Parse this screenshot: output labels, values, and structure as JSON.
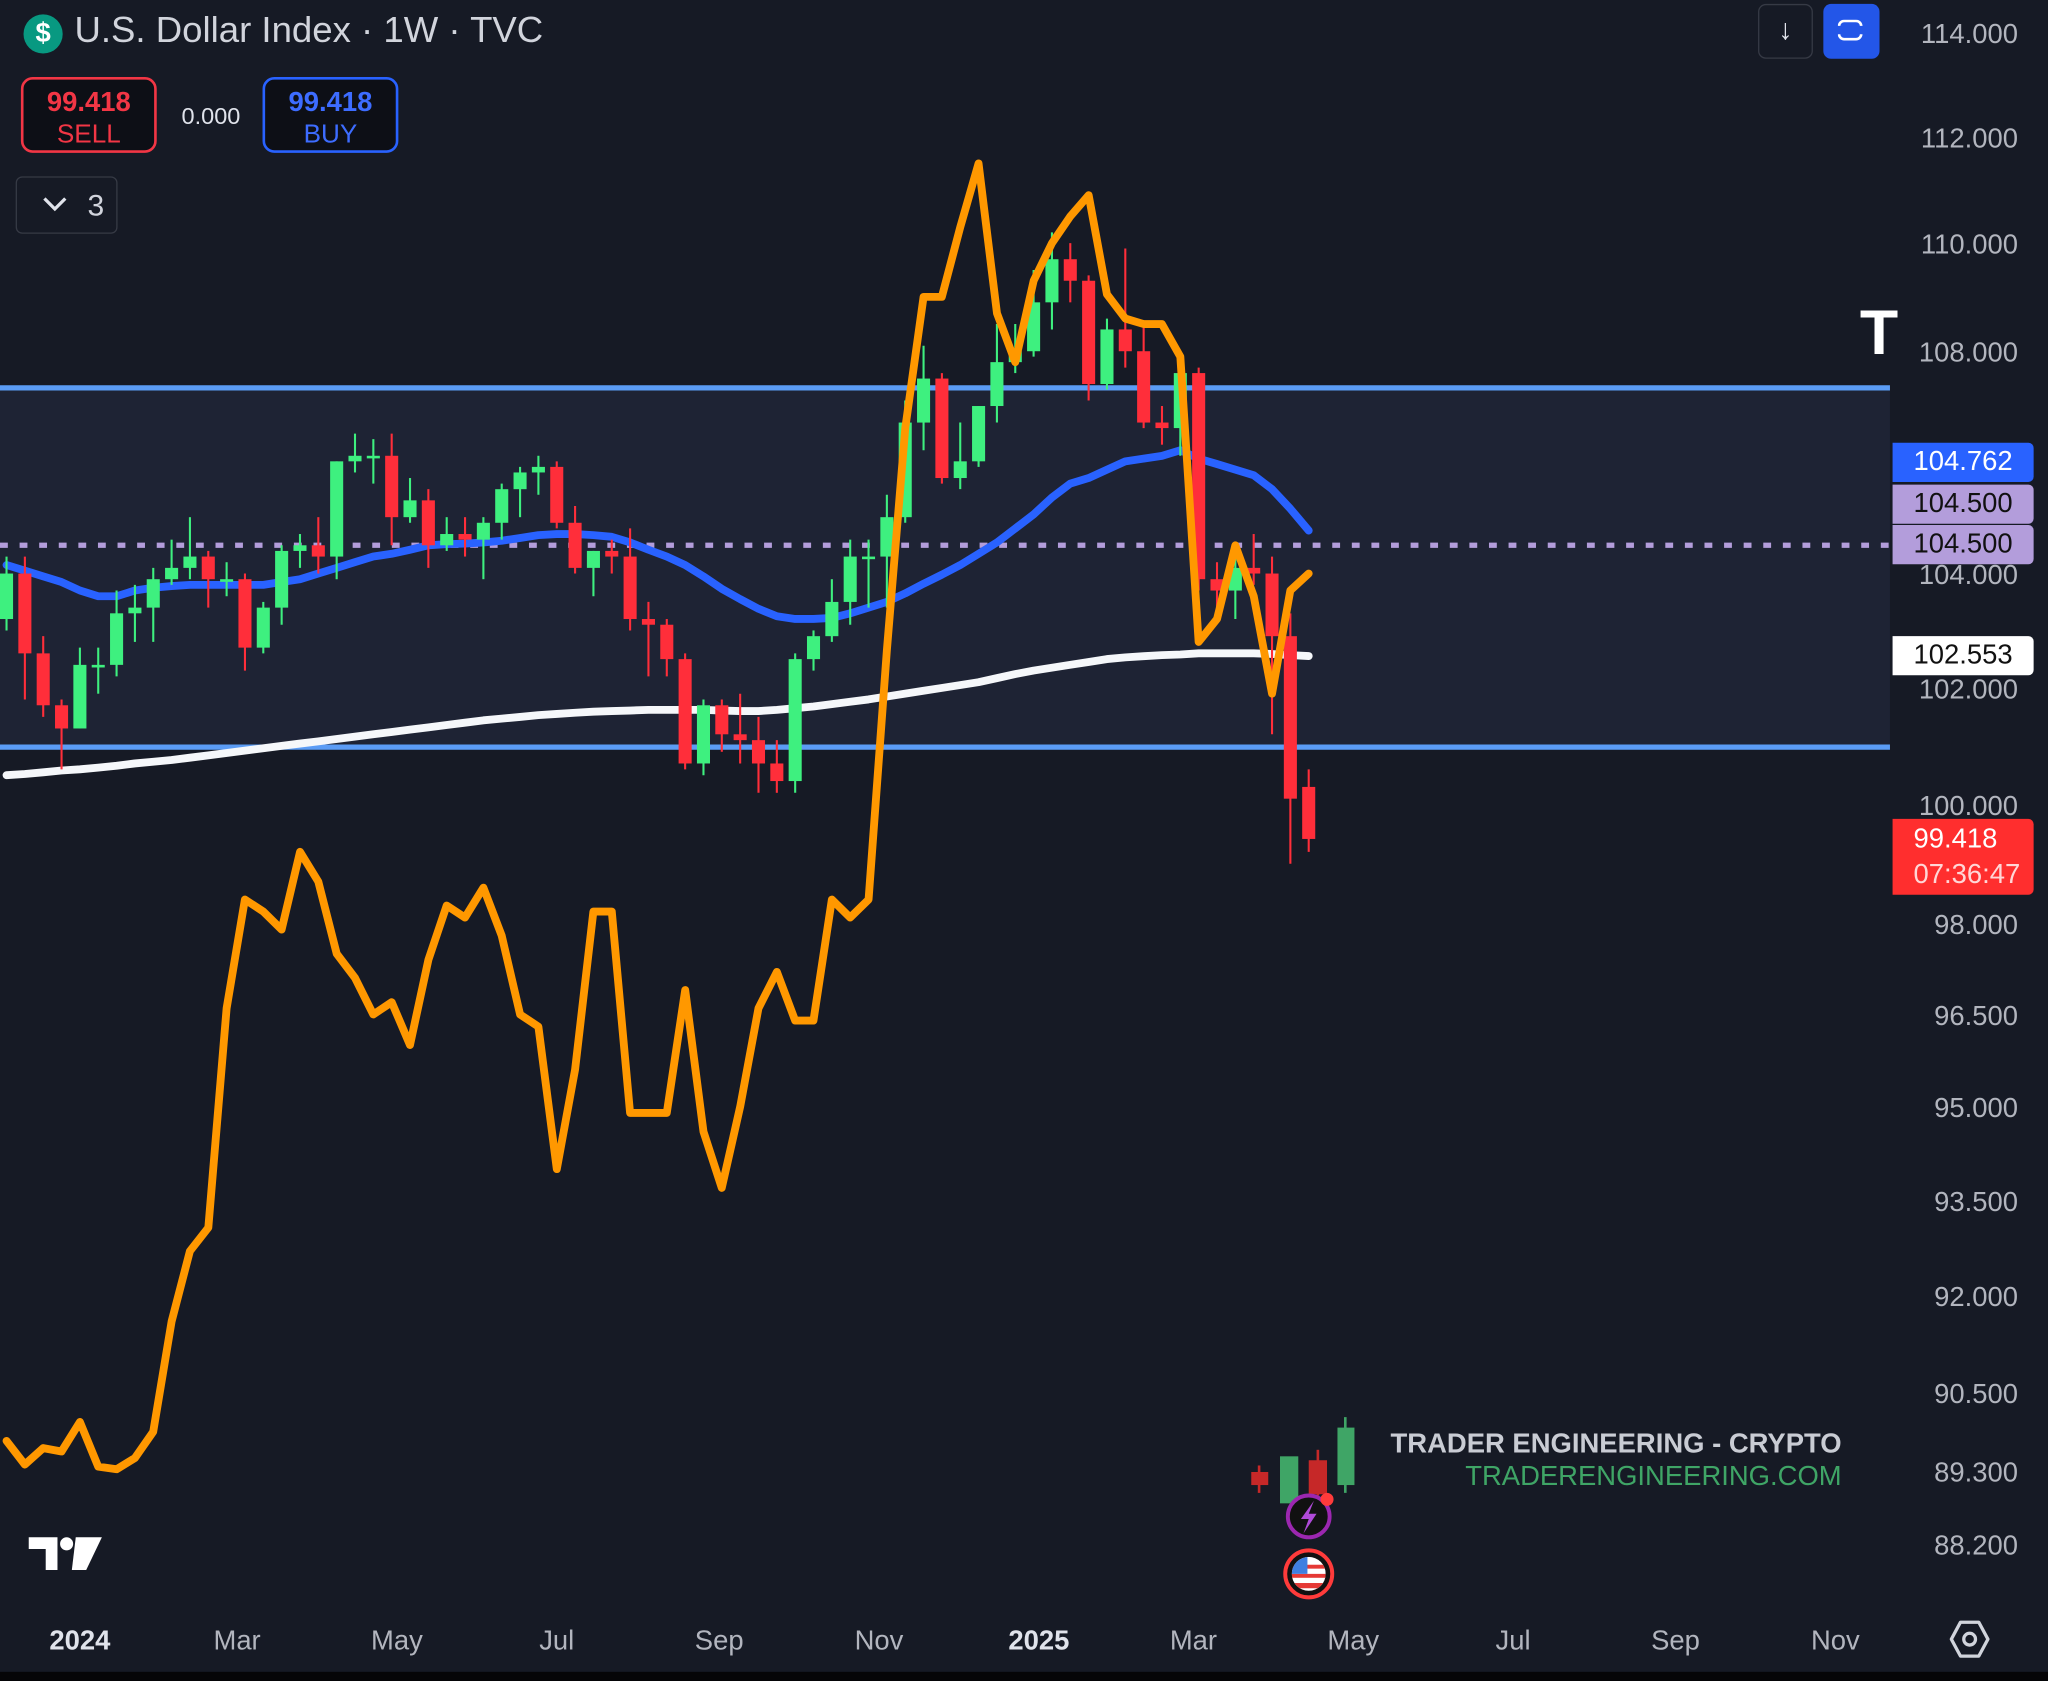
{
  "header": {
    "symbol_icon": "dollar-icon",
    "title": "U.S. Dollar Index · 1W · TVC"
  },
  "trade": {
    "sell_price": "99.418",
    "sell_label": "SELL",
    "spread": "0.000",
    "buy_price": "99.418",
    "buy_label": "BUY"
  },
  "legend_toggle": {
    "icon": "chevron-down-icon",
    "count": "3"
  },
  "toolbar": {
    "download_icon": "arrow-down-icon",
    "fullscreen_icon": "fullscreen-icon"
  },
  "clipped_label": "T",
  "price_labels": {
    "ma_blue": {
      "text": "104.762",
      "color": "#2962ff"
    },
    "line_1": {
      "text": "104.500",
      "color": "#b39ddb"
    },
    "line_2": {
      "text": "104.500",
      "color": "#b39ddb"
    },
    "ma_white": {
      "text": "102.553",
      "color": "#ffffff"
    },
    "last": {
      "text": "99.418",
      "countdown": "07:36:47",
      "color": "#ff2e2e"
    }
  },
  "watermark": {
    "line1": "TRADER ENGINEERING - CRYPTO",
    "line2": "TRADERENGINEERING.COM"
  },
  "markers": [
    "lightning-icon",
    "us-flag-icon"
  ],
  "colors": {
    "up": "#3ef07f",
    "down": "#ff2e3a",
    "ma_blue": "#2962ff",
    "ma_white": "#f5f7fa",
    "overlay": "#ff9800",
    "range": "#5b9cf5",
    "range_fill": "#1e2334",
    "level": "#b39ddb",
    "background": "#161a25"
  },
  "chart_data": {
    "type": "candlestick",
    "y_scale": "log",
    "ylim": [
      87.6,
      114.4
    ],
    "y_ticks": [
      "114.000",
      "112.000",
      "110.000",
      "108.000",
      "104.000",
      "102.000",
      "100.000",
      "98.000",
      "96.500",
      "95.000",
      "93.500",
      "92.000",
      "90.500",
      "89.300",
      "88.200"
    ],
    "x_ticks": [
      {
        "label": "2024",
        "date": "2024-01-01",
        "bold": true
      },
      {
        "label": "Mar",
        "date": "2024-03-01"
      },
      {
        "label": "May",
        "date": "2024-05-01"
      },
      {
        "label": "Jul",
        "date": "2024-07-01"
      },
      {
        "label": "Sep",
        "date": "2024-09-01"
      },
      {
        "label": "Nov",
        "date": "2024-11-01"
      },
      {
        "label": "2025",
        "date": "2025-01-01",
        "bold": true
      },
      {
        "label": "Mar",
        "date": "2025-03-01"
      },
      {
        "label": "May",
        "date": "2025-05-01"
      },
      {
        "label": "Jul",
        "date": "2025-07-01"
      },
      {
        "label": "Sep",
        "date": "2025-09-01"
      },
      {
        "label": "Nov",
        "date": "2025-11-01"
      }
    ],
    "range_box": {
      "top": 107.33,
      "bottom": 100.98
    },
    "horizontal_level": 104.5,
    "candles_ohlc": [
      [
        "2023-12-04",
        103.2,
        104.3,
        103.0,
        104.0
      ],
      [
        "2023-12-11",
        104.0,
        104.3,
        101.8,
        102.6
      ],
      [
        "2023-12-18",
        102.6,
        102.9,
        101.5,
        101.7
      ],
      [
        "2023-12-25",
        101.7,
        101.8,
        100.6,
        101.3
      ],
      [
        "2024-01-01",
        101.3,
        102.7,
        101.3,
        102.4
      ],
      [
        "2024-01-08",
        102.4,
        102.7,
        101.9,
        102.4
      ],
      [
        "2024-01-15",
        102.4,
        103.7,
        102.2,
        103.3
      ],
      [
        "2024-01-22",
        103.3,
        103.8,
        102.8,
        103.4
      ],
      [
        "2024-01-29",
        103.4,
        104.1,
        102.8,
        103.9
      ],
      [
        "2024-02-05",
        103.9,
        104.6,
        103.8,
        104.1
      ],
      [
        "2024-02-12",
        104.1,
        105.0,
        103.9,
        104.3
      ],
      [
        "2024-02-19",
        104.3,
        104.4,
        103.4,
        103.9
      ],
      [
        "2024-02-26",
        103.9,
        104.2,
        103.6,
        103.9
      ],
      [
        "2024-03-04",
        103.9,
        104.0,
        102.3,
        102.7
      ],
      [
        "2024-03-11",
        102.7,
        103.5,
        102.6,
        103.4
      ],
      [
        "2024-03-18",
        103.4,
        104.5,
        103.1,
        104.4
      ],
      [
        "2024-03-25",
        104.4,
        104.7,
        104.1,
        104.5
      ],
      [
        "2024-04-01",
        104.5,
        105.0,
        104.0,
        104.3
      ],
      [
        "2024-04-08",
        104.3,
        106.0,
        103.9,
        106.0
      ],
      [
        "2024-04-15",
        106.0,
        106.5,
        105.8,
        106.1
      ],
      [
        "2024-04-22",
        106.1,
        106.4,
        105.6,
        106.1
      ],
      [
        "2024-04-29",
        106.1,
        106.5,
        104.5,
        105.0
      ],
      [
        "2024-05-06",
        105.0,
        105.7,
        104.9,
        105.3
      ],
      [
        "2024-05-13",
        105.3,
        105.5,
        104.1,
        104.5
      ],
      [
        "2024-05-20",
        104.5,
        105.0,
        104.4,
        104.7
      ],
      [
        "2024-05-27",
        104.7,
        105.0,
        104.3,
        104.6
      ],
      [
        "2024-06-03",
        104.6,
        105.0,
        103.9,
        104.9
      ],
      [
        "2024-06-10",
        104.9,
        105.6,
        104.6,
        105.5
      ],
      [
        "2024-06-17",
        105.5,
        105.9,
        105.0,
        105.8
      ],
      [
        "2024-06-24",
        105.8,
        106.1,
        105.4,
        105.9
      ],
      [
        "2024-07-01",
        105.9,
        106.0,
        104.8,
        104.9
      ],
      [
        "2024-07-08",
        104.9,
        105.2,
        104.0,
        104.1
      ],
      [
        "2024-07-15",
        104.1,
        104.4,
        103.6,
        104.4
      ],
      [
        "2024-07-22",
        104.4,
        104.6,
        104.0,
        104.3
      ],
      [
        "2024-07-29",
        104.3,
        104.8,
        103.0,
        103.2
      ],
      [
        "2024-08-05",
        103.2,
        103.5,
        102.2,
        103.1
      ],
      [
        "2024-08-12",
        103.1,
        103.2,
        102.2,
        102.5
      ],
      [
        "2024-08-19",
        102.5,
        102.6,
        100.6,
        100.7
      ],
      [
        "2024-08-26",
        100.7,
        101.8,
        100.5,
        101.7
      ],
      [
        "2024-09-02",
        101.7,
        101.8,
        100.9,
        101.2
      ],
      [
        "2024-09-09",
        101.2,
        101.9,
        100.7,
        101.1
      ],
      [
        "2024-09-16",
        101.1,
        101.5,
        100.2,
        100.7
      ],
      [
        "2024-09-23",
        100.7,
        101.1,
        100.2,
        100.4
      ],
      [
        "2024-09-30",
        100.4,
        102.6,
        100.2,
        102.5
      ],
      [
        "2024-10-07",
        102.5,
        103.0,
        102.3,
        102.9
      ],
      [
        "2024-10-14",
        102.9,
        103.9,
        102.8,
        103.5
      ],
      [
        "2024-10-21",
        103.5,
        104.6,
        103.1,
        104.3
      ],
      [
        "2024-10-28",
        104.3,
        104.6,
        103.4,
        104.3
      ],
      [
        "2024-11-04",
        104.3,
        105.4,
        103.4,
        105.0
      ],
      [
        "2024-11-11",
        105.0,
        107.1,
        104.9,
        106.7
      ],
      [
        "2024-11-18",
        106.7,
        108.1,
        106.2,
        107.5
      ],
      [
        "2024-11-25",
        107.5,
        107.6,
        105.6,
        105.7
      ],
      [
        "2024-12-02",
        105.7,
        106.7,
        105.5,
        106.0
      ],
      [
        "2024-12-09",
        106.0,
        107.0,
        105.9,
        107.0
      ],
      [
        "2024-12-16",
        107.0,
        108.5,
        106.7,
        107.8
      ],
      [
        "2024-12-23",
        107.8,
        108.5,
        107.6,
        108.0
      ],
      [
        "2024-12-30",
        108.0,
        109.5,
        107.9,
        108.9
      ],
      [
        "2025-01-06",
        108.9,
        110.2,
        108.4,
        109.7
      ],
      [
        "2025-01-13",
        109.7,
        110.0,
        108.9,
        109.3
      ],
      [
        "2025-01-20",
        109.3,
        109.4,
        107.1,
        107.4
      ],
      [
        "2025-01-27",
        107.4,
        108.6,
        107.3,
        108.4
      ],
      [
        "2025-02-03",
        108.4,
        109.9,
        107.7,
        108.0
      ],
      [
        "2025-02-10",
        108.0,
        108.5,
        106.6,
        106.7
      ],
      [
        "2025-02-17",
        106.7,
        107.0,
        106.3,
        106.6
      ],
      [
        "2025-02-24",
        106.6,
        107.7,
        106.1,
        107.6
      ],
      [
        "2025-03-03",
        107.6,
        107.7,
        103.7,
        103.9
      ],
      [
        "2025-03-10",
        103.9,
        104.2,
        103.2,
        103.7
      ],
      [
        "2025-03-17",
        103.7,
        104.5,
        103.2,
        104.1
      ],
      [
        "2025-03-24",
        104.1,
        104.7,
        103.8,
        104.0
      ],
      [
        "2025-03-31",
        104.0,
        104.3,
        101.2,
        102.9
      ],
      [
        "2025-04-07",
        102.9,
        103.3,
        99.0,
        100.1
      ],
      [
        "2025-04-14",
        100.3,
        100.6,
        99.2,
        99.418
      ]
    ],
    "ma_blue": [
      104.15,
      104.05,
      103.95,
      103.85,
      103.7,
      103.6,
      103.6,
      103.7,
      103.75,
      103.78,
      103.8,
      103.8,
      103.8,
      103.8,
      103.8,
      103.85,
      103.9,
      104.0,
      104.1,
      104.2,
      104.3,
      104.35,
      104.42,
      104.5,
      104.52,
      104.53,
      104.55,
      104.58,
      104.63,
      104.68,
      104.7,
      104.7,
      104.68,
      104.65,
      104.55,
      104.42,
      104.3,
      104.15,
      103.95,
      103.73,
      103.55,
      103.38,
      103.25,
      103.2,
      103.2,
      103.22,
      103.3,
      103.4,
      103.5,
      103.65,
      103.82,
      103.98,
      104.15,
      104.35,
      104.55,
      104.8,
      105.05,
      105.35,
      105.6,
      105.7,
      105.85,
      106.0,
      106.05,
      106.1,
      106.2,
      106.05,
      105.95,
      105.85,
      105.75,
      105.5,
      105.15,
      104.762
    ],
    "ma_white": [
      100.5,
      100.52,
      100.55,
      100.58,
      100.6,
      100.63,
      100.66,
      100.7,
      100.73,
      100.76,
      100.8,
      100.84,
      100.88,
      100.92,
      100.96,
      101.0,
      101.04,
      101.08,
      101.12,
      101.16,
      101.2,
      101.24,
      101.28,
      101.32,
      101.36,
      101.4,
      101.44,
      101.47,
      101.5,
      101.53,
      101.55,
      101.57,
      101.59,
      101.6,
      101.61,
      101.62,
      101.62,
      101.62,
      101.62,
      101.61,
      101.6,
      101.6,
      101.62,
      101.65,
      101.68,
      101.72,
      101.76,
      101.8,
      101.85,
      101.9,
      101.95,
      102.0,
      102.05,
      102.1,
      102.17,
      102.24,
      102.3,
      102.35,
      102.4,
      102.45,
      102.5,
      102.53,
      102.55,
      102.57,
      102.58,
      102.6,
      102.6,
      102.6,
      102.6,
      102.59,
      102.57,
      102.553
    ],
    "overlay_orange": [
      89.76,
      89.4,
      89.65,
      89.6,
      90.05,
      89.37,
      89.33,
      89.5,
      89.9,
      91.6,
      92.7,
      93.07,
      96.6,
      98.4,
      98.2,
      97.9,
      99.2,
      98.7,
      97.5,
      97.1,
      96.5,
      96.7,
      96.0,
      97.4,
      98.3,
      98.1,
      98.6,
      97.8,
      96.5,
      96.3,
      94.0,
      95.6,
      98.2,
      98.2,
      94.9,
      94.9,
      94.9,
      96.9,
      94.6,
      93.7,
      95.0,
      96.6,
      97.2,
      96.4,
      96.4,
      98.4,
      98.1,
      98.4,
      102.65,
      106.6,
      109.0,
      109.0,
      110.3,
      111.5,
      108.7,
      107.8,
      109.3,
      110.0,
      110.5,
      110.9,
      109.05,
      108.6,
      108.5,
      108.5,
      107.9,
      102.8,
      103.2,
      104.5,
      103.6,
      101.9,
      103.7,
      104.0
    ]
  }
}
